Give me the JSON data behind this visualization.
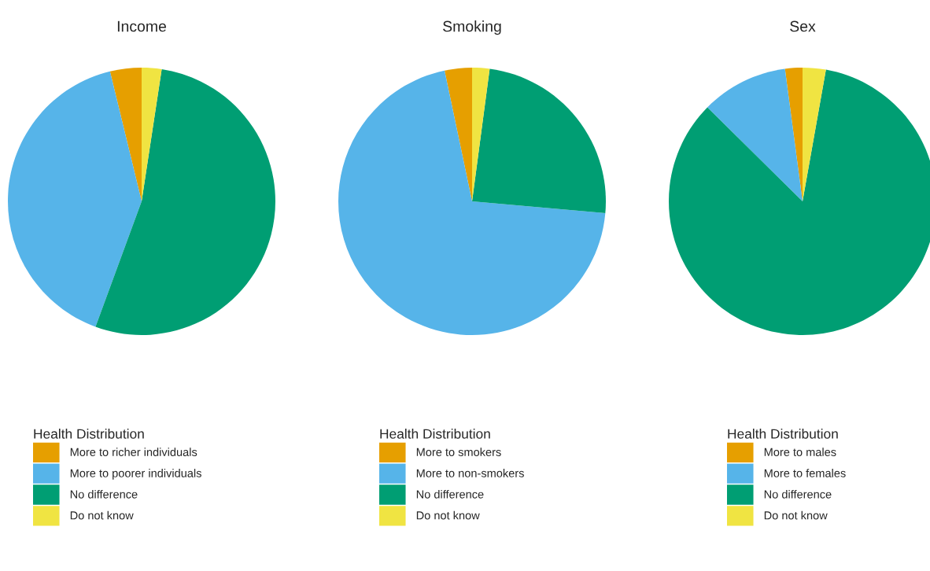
{
  "chart_data": [
    {
      "type": "pie",
      "title": "Income",
      "legend_title": "Health Distribution",
      "legend": "bottom",
      "categories": [
        "More to richer individuals",
        "More to poorer individuals",
        "No difference",
        "Do not know"
      ],
      "values": [
        3.8,
        40.6,
        53.2,
        2.4
      ],
      "colors": [
        "#e69f00",
        "#56b4e9",
        "#009e73",
        "#f0e442"
      ]
    },
    {
      "type": "pie",
      "title": "Smoking",
      "legend_title": "Health Distribution",
      "legend": "bottom",
      "categories": [
        "More to smokers",
        "More to non-smokers",
        "No difference",
        "Do not know"
      ],
      "values": [
        3.3,
        70.3,
        24.3,
        2.1
      ],
      "colors": [
        "#e69f00",
        "#56b4e9",
        "#009e73",
        "#f0e442"
      ]
    },
    {
      "type": "pie",
      "title": "Sex",
      "legend_title": "Health Distribution",
      "legend": "bottom",
      "categories": [
        "More to males",
        "More to females",
        "No difference",
        "Do not know"
      ],
      "values": [
        2.1,
        10.5,
        84.6,
        2.8
      ],
      "colors": [
        "#e69f00",
        "#56b4e9",
        "#009e73",
        "#f0e442"
      ]
    }
  ]
}
